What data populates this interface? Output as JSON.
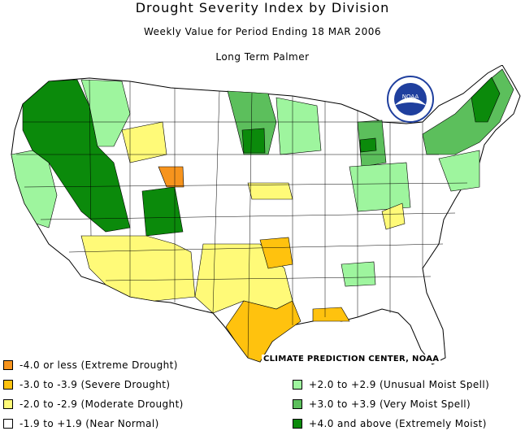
{
  "title": "Drought Severity Index by Division",
  "subtitle": "Weekly Value for Period Ending 18 MAR 2006",
  "index_name": "Long Term Palmer",
  "credit": "CLIMATE PREDICTION CENTER, NOAA",
  "logo_text": "NOAA",
  "colors": {
    "extreme_drought": "#f7941d",
    "severe_drought": "#ffc20e",
    "moderate_drought": "#fffa78",
    "near_normal": "#ffffff",
    "unusual_moist": "#9ef59e",
    "very_moist": "#5cbf5c",
    "extremely_moist": "#0b8a0b",
    "border": "#000000"
  },
  "legend": [
    {
      "label": "-4.0 or less (Extreme Drought)",
      "color": "#f7941d"
    },
    {
      "label": "-3.0 to -3.9 (Severe Drought)",
      "color": "#ffc20e"
    },
    {
      "label": "-2.0 to -2.9 (Moderate Drought)",
      "color": "#fffa78"
    },
    {
      "label": "-1.9 to +1.9 (Near Normal)",
      "color": "#ffffff"
    },
    {
      "label": "+2.0 to +2.9 (Unusual Moist Spell)",
      "color": "#9ef59e"
    },
    {
      "label": "+3.0 to +3.9 (Very Moist Spell)",
      "color": "#5cbf5c"
    },
    {
      "label": "+4.0 and above (Extremely Moist)",
      "color": "#0b8a0b"
    }
  ]
}
